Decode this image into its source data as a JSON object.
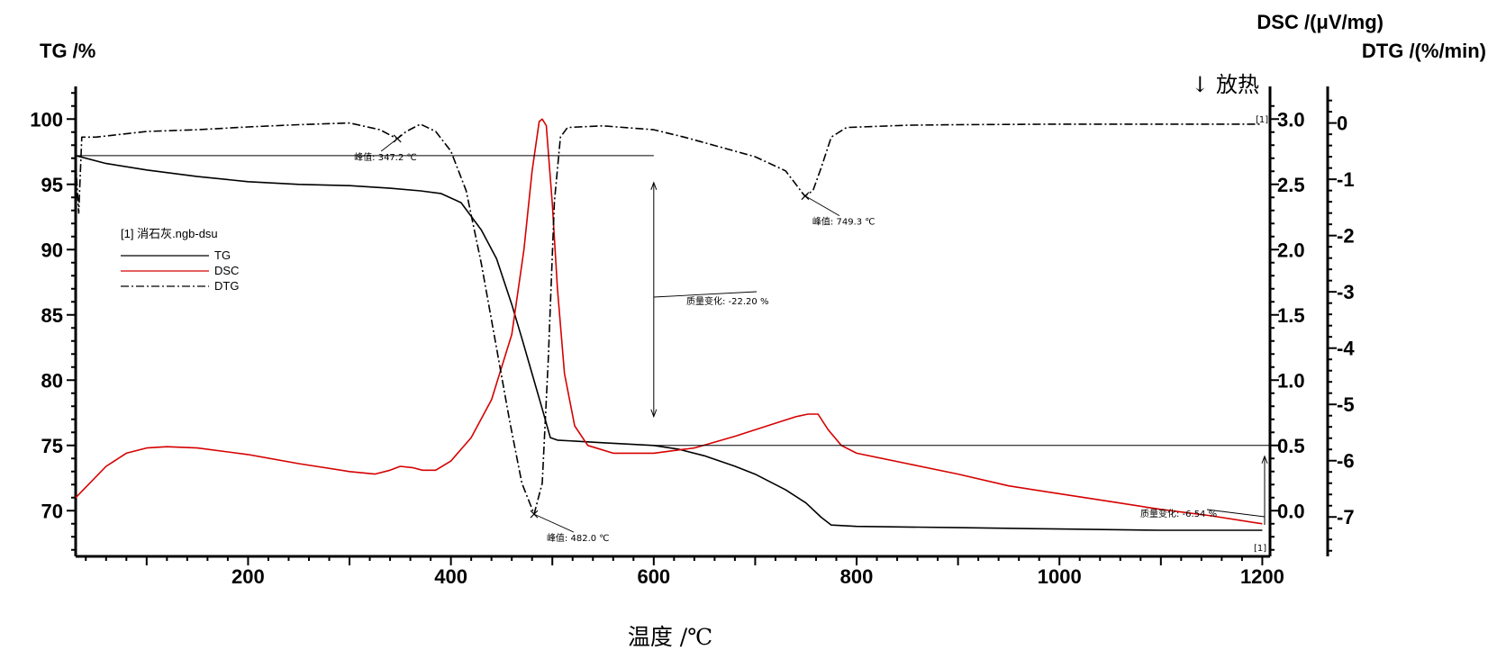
{
  "chart_data": {
    "type": "line",
    "title": "",
    "xlabel": "温度 /℃",
    "xlim": [
      30,
      1200
    ],
    "xticks": [
      200,
      400,
      600,
      800,
      1000,
      1200
    ],
    "axes": {
      "tg": {
        "label": "TG /%",
        "lim": [
          66.5,
          102.5
        ],
        "ticks": [
          70,
          75,
          80,
          85,
          90,
          95,
          100
        ]
      },
      "dsc": {
        "label": "DSC /(μV/mg)",
        "lim": [
          -0.35,
          3.25
        ],
        "ticks": [
          "0.0",
          "0.5",
          "1.0",
          "1.5",
          "2.0",
          "2.5",
          "3.0"
        ]
      },
      "dtg": {
        "label": "DTG /(%/min)",
        "lim": [
          -7.7,
          0.65
        ],
        "ticks": [
          0,
          -1,
          -2,
          -3,
          -4,
          -5,
          -6,
          -7
        ]
      }
    },
    "exo_label": "↓ 放热",
    "legend": {
      "title": "[1] 消石灰.ngb-dsu",
      "entries": [
        {
          "name": "TG",
          "color": "#000000",
          "style": "solid"
        },
        {
          "name": "DSC",
          "color": "#d60000",
          "style": "solid"
        },
        {
          "name": "DTG",
          "color": "#000000",
          "style": "dashdot"
        }
      ]
    },
    "series": [
      {
        "name": "TG",
        "axis": "tg",
        "color": "#000000",
        "points": [
          [
            30,
            97.2
          ],
          [
            60,
            96.6
          ],
          [
            100,
            96.1
          ],
          [
            150,
            95.6
          ],
          [
            200,
            95.2
          ],
          [
            250,
            95.0
          ],
          [
            300,
            94.9
          ],
          [
            340,
            94.7
          ],
          [
            370,
            94.5
          ],
          [
            390,
            94.3
          ],
          [
            410,
            93.6
          ],
          [
            430,
            91.5
          ],
          [
            445,
            89.3
          ],
          [
            460,
            85.8
          ],
          [
            470,
            83.2
          ],
          [
            480,
            80.5
          ],
          [
            490,
            77.8
          ],
          [
            498,
            75.6
          ],
          [
            505,
            75.4
          ],
          [
            550,
            75.2
          ],
          [
            600,
            75.0
          ],
          [
            625,
            74.7
          ],
          [
            650,
            74.2
          ],
          [
            680,
            73.4
          ],
          [
            700,
            72.8
          ],
          [
            730,
            71.6
          ],
          [
            750,
            70.6
          ],
          [
            765,
            69.5
          ],
          [
            775,
            68.9
          ],
          [
            800,
            68.8
          ],
          [
            900,
            68.7
          ],
          [
            1000,
            68.6
          ],
          [
            1100,
            68.5
          ],
          [
            1200,
            68.5
          ]
        ]
      },
      {
        "name": "DSC",
        "axis": "dsc",
        "color": "#d60000",
        "points": [
          [
            30,
            0.1
          ],
          [
            60,
            0.34
          ],
          [
            80,
            0.44
          ],
          [
            100,
            0.48
          ],
          [
            120,
            0.49
          ],
          [
            150,
            0.48
          ],
          [
            200,
            0.43
          ],
          [
            250,
            0.36
          ],
          [
            300,
            0.3
          ],
          [
            325,
            0.28
          ],
          [
            340,
            0.31
          ],
          [
            350,
            0.34
          ],
          [
            362,
            0.33
          ],
          [
            372,
            0.31
          ],
          [
            385,
            0.31
          ],
          [
            400,
            0.38
          ],
          [
            420,
            0.56
          ],
          [
            440,
            0.85
          ],
          [
            460,
            1.35
          ],
          [
            472,
            2.0
          ],
          [
            480,
            2.6
          ],
          [
            487,
            2.98
          ],
          [
            490,
            3.0
          ],
          [
            494,
            2.95
          ],
          [
            500,
            2.35
          ],
          [
            505,
            1.7
          ],
          [
            512,
            1.05
          ],
          [
            522,
            0.65
          ],
          [
            535,
            0.5
          ],
          [
            560,
            0.44
          ],
          [
            600,
            0.44
          ],
          [
            640,
            0.48
          ],
          [
            680,
            0.57
          ],
          [
            700,
            0.62
          ],
          [
            720,
            0.67
          ],
          [
            740,
            0.72
          ],
          [
            752,
            0.74
          ],
          [
            762,
            0.74
          ],
          [
            772,
            0.62
          ],
          [
            785,
            0.5
          ],
          [
            800,
            0.44
          ],
          [
            850,
            0.36
          ],
          [
            900,
            0.28
          ],
          [
            950,
            0.19
          ],
          [
            1000,
            0.13
          ],
          [
            1050,
            0.07
          ],
          [
            1100,
            0.01
          ],
          [
            1150,
            -0.04
          ],
          [
            1200,
            -0.1
          ]
        ]
      },
      {
        "name": "DTG",
        "axis": "dtg",
        "color": "#000000",
        "points": [
          [
            30,
            -0.7
          ],
          [
            33,
            -1.6
          ],
          [
            36,
            -0.25
          ],
          [
            50,
            -0.25
          ],
          [
            100,
            -0.15
          ],
          [
            150,
            -0.12
          ],
          [
            200,
            -0.07
          ],
          [
            250,
            -0.03
          ],
          [
            300,
            0.0
          ],
          [
            330,
            -0.12
          ],
          [
            347,
            -0.28
          ],
          [
            356,
            -0.15
          ],
          [
            370,
            -0.02
          ],
          [
            385,
            -0.15
          ],
          [
            400,
            -0.5
          ],
          [
            415,
            -1.2
          ],
          [
            430,
            -2.5
          ],
          [
            445,
            -4.0
          ],
          [
            458,
            -5.3
          ],
          [
            470,
            -6.4
          ],
          [
            482,
            -6.95
          ],
          [
            490,
            -6.4
          ],
          [
            496,
            -4.2
          ],
          [
            502,
            -1.4
          ],
          [
            508,
            -0.25
          ],
          [
            515,
            -0.08
          ],
          [
            550,
            -0.05
          ],
          [
            600,
            -0.12
          ],
          [
            630,
            -0.25
          ],
          [
            660,
            -0.4
          ],
          [
            700,
            -0.6
          ],
          [
            730,
            -0.85
          ],
          [
            749,
            -1.3
          ],
          [
            757,
            -1.2
          ],
          [
            765,
            -0.8
          ],
          [
            775,
            -0.25
          ],
          [
            790,
            -0.08
          ],
          [
            850,
            -0.04
          ],
          [
            900,
            -0.03
          ],
          [
            1000,
            -0.02
          ],
          [
            1100,
            -0.02
          ],
          [
            1200,
            -0.02
          ]
        ]
      }
    ],
    "annotations": [
      {
        "text": "峰值: 347.2 ℃",
        "x": 347.2,
        "series": "DTG"
      },
      {
        "text": "峰值: 482.0 ℃",
        "x": 482.0,
        "series": "DTG"
      },
      {
        "text": "峰值: 749.3 ℃",
        "x": 749.3,
        "series": "DTG"
      },
      {
        "text": "质量变化: -22.20 %",
        "x1": 30,
        "x2": 600,
        "tg_from": 97.2,
        "tg_to": 75.0
      },
      {
        "text": "质量变化: -6.54 %",
        "x1": 600,
        "x2": 1200,
        "tg_from": 75.0,
        "tg_to": 68.5
      }
    ],
    "end_markers": [
      "[1]",
      "[1]"
    ]
  }
}
